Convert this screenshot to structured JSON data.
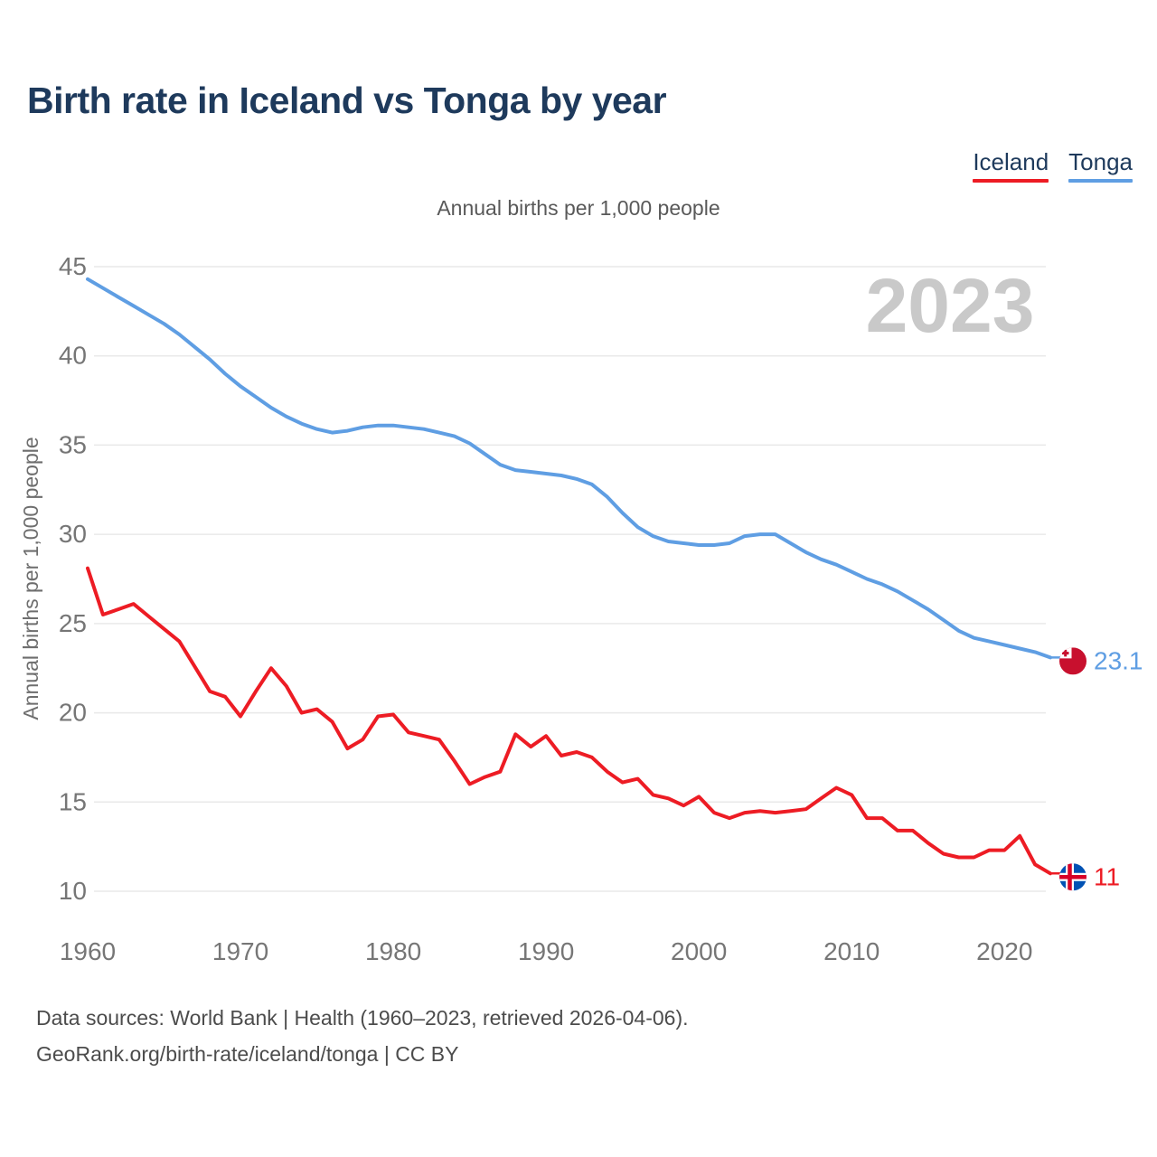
{
  "header": {
    "title": "Birth rate in Iceland vs Tonga by year"
  },
  "legend": {
    "iceland": {
      "label": "Iceland",
      "color": "#ed1c24"
    },
    "tonga": {
      "label": "Tonga",
      "color": "#5f9ee3"
    }
  },
  "subtitle": "Annual births per 1,000 people",
  "watermark": "2023",
  "end_labels": {
    "tonga": "23.1",
    "iceland": "11"
  },
  "footer": {
    "line1": "Data sources: World Bank | Health (1960–2023, retrieved 2026-04-06).",
    "line2": "GeoRank.org/birth-rate/iceland/tonga | CC BY"
  },
  "colors": {
    "grid": "#e9e9e9",
    "tick_text": "#767676",
    "axis_label": "#6e6e6e",
    "watermark": "#c9c9c9",
    "tonga_flag_red": "#c8102e",
    "iceland_flag_blue": "#0052b4",
    "iceland_flag_red": "#d80027"
  },
  "chart_data": {
    "type": "line",
    "title": "Birth rate in Iceland vs Tonga by year",
    "ylabel": "Annual births per 1,000 people",
    "ylim": [
      10,
      45
    ],
    "y_ticks": [
      45,
      40,
      35,
      30,
      25,
      20,
      15,
      10
    ],
    "x_ticks": [
      1960,
      1970,
      1980,
      1990,
      2000,
      2010,
      2020
    ],
    "grid": true,
    "legend_position": "top-right",
    "x": [
      1960,
      1961,
      1962,
      1963,
      1964,
      1965,
      1966,
      1967,
      1968,
      1969,
      1970,
      1971,
      1972,
      1973,
      1974,
      1975,
      1976,
      1977,
      1978,
      1979,
      1980,
      1981,
      1982,
      1983,
      1984,
      1985,
      1986,
      1987,
      1988,
      1989,
      1990,
      1991,
      1992,
      1993,
      1994,
      1995,
      1996,
      1997,
      1998,
      1999,
      2000,
      2001,
      2002,
      2003,
      2004,
      2005,
      2006,
      2007,
      2008,
      2009,
      2010,
      2011,
      2012,
      2013,
      2014,
      2015,
      2016,
      2017,
      2018,
      2019,
      2020,
      2021,
      2022,
      2023
    ],
    "series": [
      {
        "name": "Tonga",
        "color": "#5f9ee3",
        "end_label": "23.1",
        "values": [
          44.3,
          43.8,
          43.3,
          42.8,
          42.3,
          41.8,
          41.2,
          40.5,
          39.8,
          39.0,
          38.3,
          37.7,
          37.1,
          36.6,
          36.2,
          35.9,
          35.7,
          35.8,
          36.0,
          36.1,
          36.1,
          36.0,
          35.9,
          35.7,
          35.5,
          35.1,
          34.5,
          33.9,
          33.6,
          33.5,
          33.4,
          33.3,
          33.1,
          32.8,
          32.1,
          31.2,
          30.4,
          29.9,
          29.6,
          29.5,
          29.4,
          29.4,
          29.5,
          29.9,
          30.0,
          30.0,
          29.5,
          29.0,
          28.6,
          28.3,
          27.9,
          27.5,
          27.2,
          26.8,
          26.3,
          25.8,
          25.2,
          24.6,
          24.2,
          24.0,
          23.8,
          23.6,
          23.4,
          23.1
        ]
      },
      {
        "name": "Iceland",
        "color": "#ed1c24",
        "end_label": "11",
        "values": [
          28.1,
          25.5,
          25.8,
          26.1,
          25.4,
          24.7,
          24.0,
          22.6,
          21.2,
          20.9,
          19.8,
          21.2,
          22.5,
          21.5,
          20.0,
          20.2,
          19.5,
          18.0,
          18.5,
          19.8,
          19.9,
          18.9,
          18.7,
          18.5,
          17.3,
          16.0,
          16.4,
          16.7,
          18.8,
          18.1,
          18.7,
          17.6,
          17.8,
          17.5,
          16.7,
          16.1,
          16.3,
          15.4,
          15.2,
          14.8,
          15.3,
          14.4,
          14.1,
          14.4,
          14.5,
          14.4,
          14.5,
          14.6,
          15.2,
          15.8,
          15.4,
          14.1,
          14.1,
          13.4,
          13.4,
          12.7,
          12.1,
          11.9,
          11.9,
          12.3,
          12.3,
          13.1,
          11.5,
          11.0
        ]
      }
    ]
  }
}
